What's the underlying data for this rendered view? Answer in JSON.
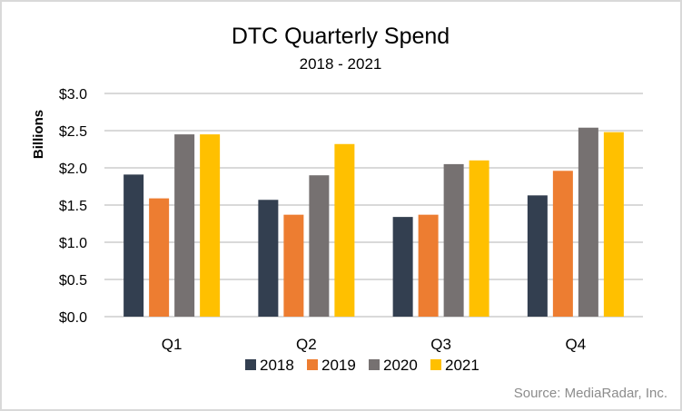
{
  "chart_data": {
    "type": "bar",
    "title": "DTC Quarterly Spend",
    "subtitle": "2018 - 2021",
    "xlabel": "",
    "ylabel": "Billions",
    "categories": [
      "Q1",
      "Q2",
      "Q3",
      "Q4"
    ],
    "series": [
      {
        "name": "2018",
        "color": "#333f50",
        "values": [
          1.91,
          1.57,
          1.34,
          1.63
        ]
      },
      {
        "name": "2019",
        "color": "#ed7d31",
        "values": [
          1.59,
          1.37,
          1.37,
          1.96
        ]
      },
      {
        "name": "2020",
        "color": "#767171",
        "values": [
          2.45,
          1.9,
          2.05,
          2.54
        ]
      },
      {
        "name": "2021",
        "color": "#ffc000",
        "values": [
          2.45,
          2.32,
          2.1,
          2.48
        ]
      }
    ],
    "ylim": [
      0,
      3.0
    ],
    "yticks": [
      0,
      0.5,
      1.0,
      1.5,
      2.0,
      2.5,
      3.0
    ],
    "ytick_labels": [
      "$0.0",
      "$0.5",
      "$1.0",
      "$1.5",
      "$2.0",
      "$2.5",
      "$3.0"
    ],
    "grid": true,
    "legend_position": "bottom",
    "annotation": "Source: MediaRadar, Inc."
  }
}
